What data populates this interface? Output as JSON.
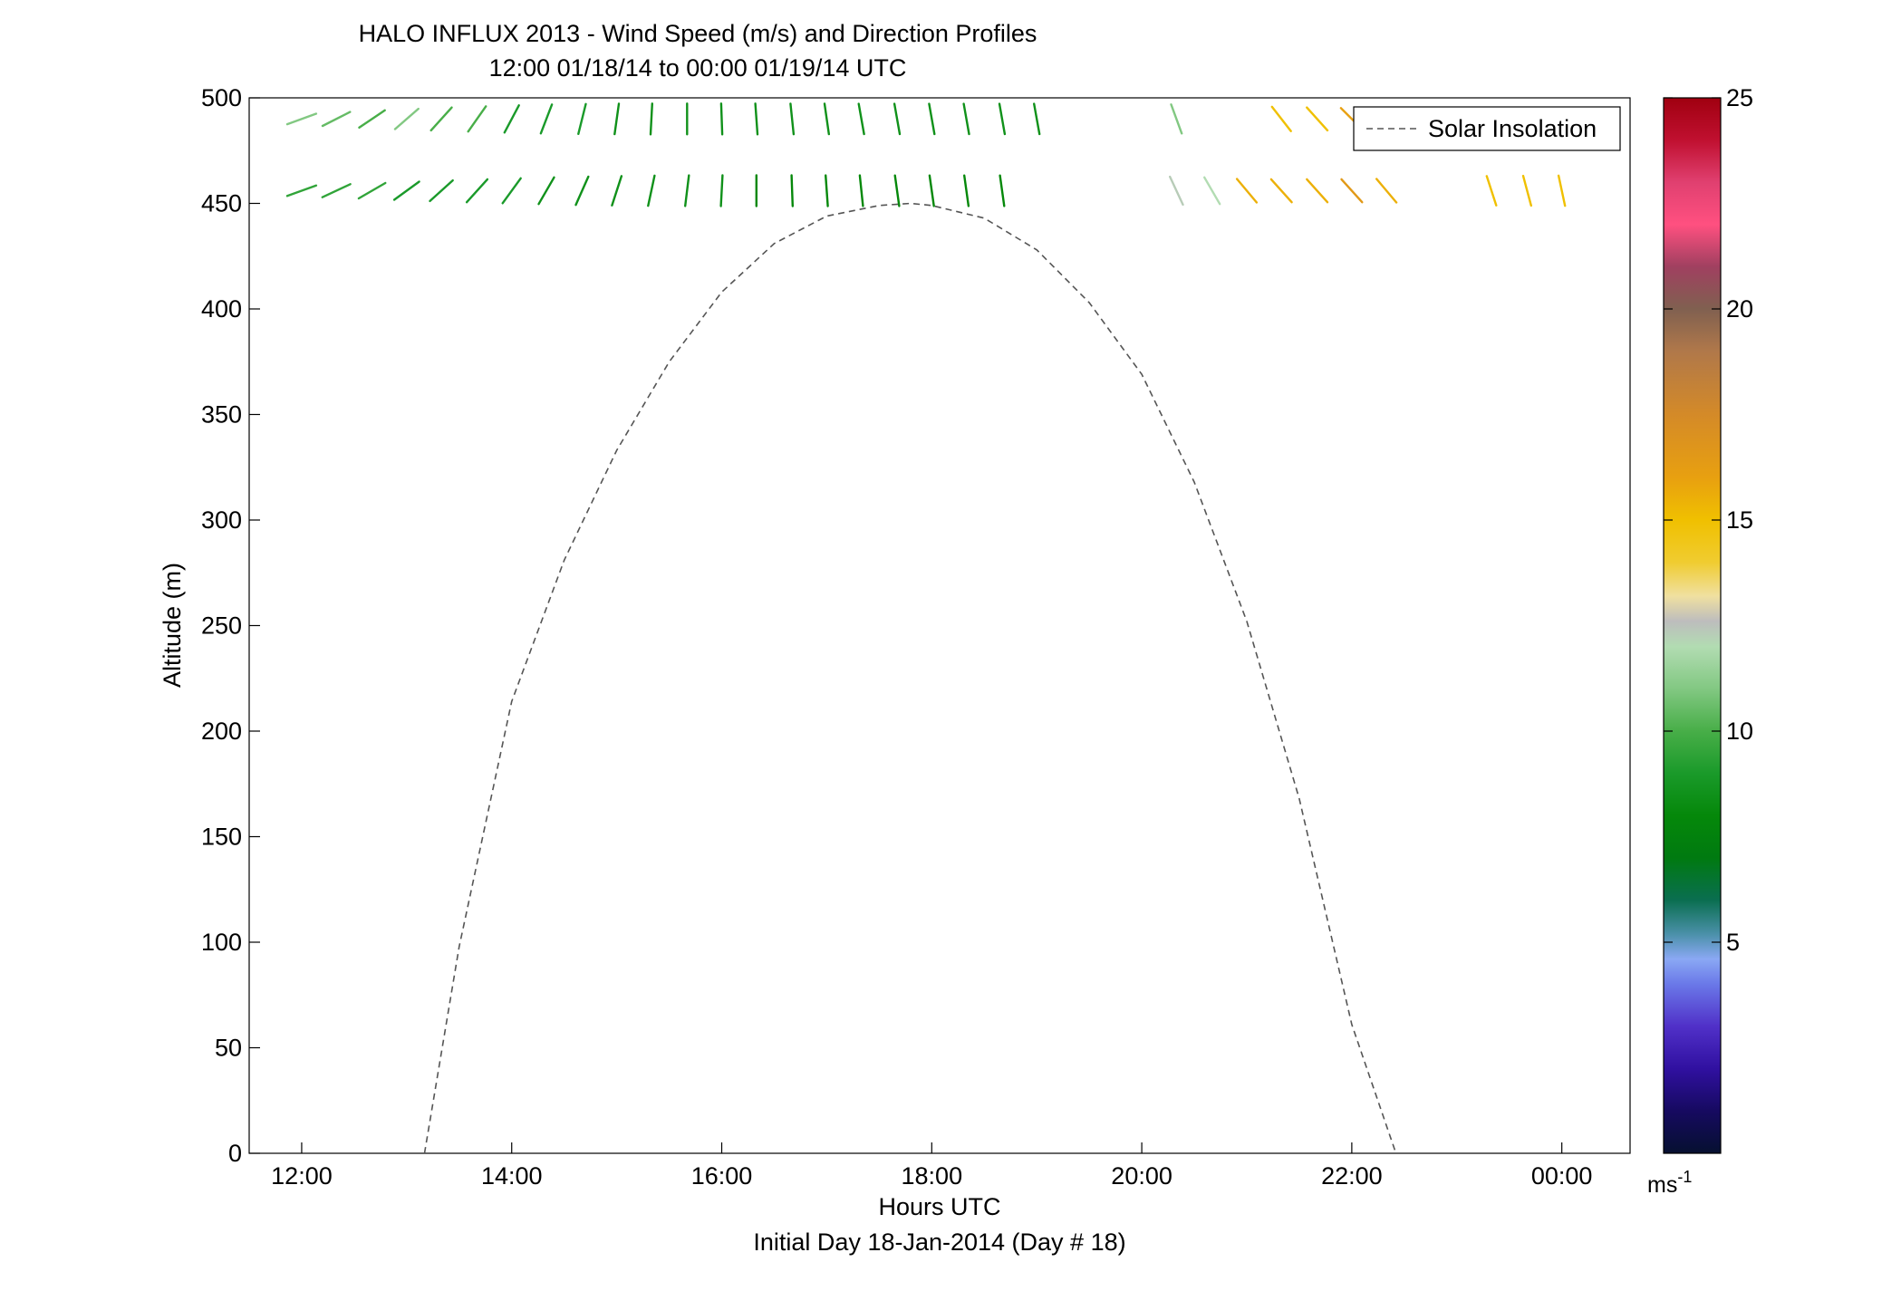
{
  "chart_data": {
    "type": "wind-barb-profile",
    "title": "HALO INFLUX 2013 - Wind Speed (m/s) and Direction Profiles",
    "subtitle": "12:00 01/18/14 to 00:00 01/19/14  UTC",
    "xlabel": "Hours UTC",
    "xlabel2": "Initial Day 18-Jan-2014 (Day # 18)",
    "ylabel": "Altitude (m)",
    "xlim": [
      11.5,
      24.65
    ],
    "ylim": [
      0,
      500
    ],
    "xticks": [
      12,
      14,
      16,
      18,
      20,
      22,
      24
    ],
    "xtick_labels": [
      "12:00",
      "14:00",
      "16:00",
      "18:00",
      "20:00",
      "22:00",
      "00:00"
    ],
    "yticks": [
      0,
      50,
      100,
      150,
      200,
      250,
      300,
      350,
      400,
      450,
      500
    ],
    "ytick_labels": [
      "0",
      "50",
      "100",
      "150",
      "200",
      "250",
      "300",
      "350",
      "400",
      "450",
      "500"
    ],
    "legend": {
      "label": "Solar Insolation",
      "placement": "top-right",
      "line_color": "#555555"
    },
    "solar_insolation": {
      "x": [
        13.17,
        13.5,
        14.0,
        14.5,
        15.0,
        15.5,
        16.0,
        16.5,
        17.0,
        17.5,
        17.8,
        18.0,
        18.5,
        19.0,
        19.5,
        20.0,
        20.5,
        21.0,
        21.5,
        22.0,
        22.42
      ],
      "y": [
        0,
        98,
        214,
        281,
        333,
        375,
        408,
        431,
        444,
        449,
        450,
        449,
        443,
        428,
        403,
        369,
        318,
        252,
        168,
        61,
        0
      ]
    },
    "colorbar": {
      "unit_label": "ms",
      "unit_exponent": "-1",
      "range": [
        0,
        25
      ],
      "tick_values": [
        5,
        10,
        15,
        20,
        25
      ],
      "tick_labels": [
        "5",
        "10",
        "15",
        "20",
        "25"
      ],
      "stops": [
        [
          0,
          "#061030"
        ],
        [
          1,
          "#160a60"
        ],
        [
          2,
          "#3010a0"
        ],
        [
          3,
          "#5030c8"
        ],
        [
          4,
          "#6a78e8"
        ],
        [
          4.6,
          "#8aa8f4"
        ],
        [
          5.2,
          "#4a90a8"
        ],
        [
          6,
          "#0a6e50"
        ],
        [
          7,
          "#007a10"
        ],
        [
          8,
          "#05880a"
        ],
        [
          9,
          "#1a9a2a"
        ],
        [
          10,
          "#48ae48"
        ],
        [
          11,
          "#82c882"
        ],
        [
          12,
          "#b2dcb2"
        ],
        [
          12.6,
          "#bdbdbd"
        ],
        [
          13.2,
          "#f0e0a0"
        ],
        [
          14,
          "#f0cc30"
        ],
        [
          15,
          "#f0c000"
        ],
        [
          16,
          "#e8a010"
        ],
        [
          17.5,
          "#d48a28"
        ],
        [
          19,
          "#b0784a"
        ],
        [
          20,
          "#806050"
        ],
        [
          21,
          "#a04060"
        ],
        [
          22,
          "#ff5080"
        ],
        [
          23,
          "#e04070"
        ],
        [
          24,
          "#c01030"
        ],
        [
          25,
          "#a00010"
        ]
      ]
    },
    "x_hours": [
      12.0,
      12.33,
      12.67,
      13.0,
      13.33,
      13.67,
      14.0,
      14.33,
      14.67,
      15.0,
      15.33,
      15.67,
      16.0,
      16.33,
      16.67,
      17.0,
      17.33,
      17.67,
      18.0,
      18.33,
      18.67,
      19.0,
      19.33,
      19.67,
      20.0,
      20.33,
      20.67,
      21.0,
      21.33,
      21.67,
      22.0,
      22.33,
      22.67,
      23.0,
      23.33,
      23.67,
      24.0
    ],
    "rows": [
      {
        "altitude": 490,
        "range": [
          0,
          21
        ],
        "extra": [
          [
            21,
            22
          ],
          [
            25,
            26
          ],
          [
            28,
            32
          ]
        ],
        "spd": [
          11,
          10.5,
          10,
          11,
          10,
          10,
          9,
          9,
          9,
          8.5,
          8.5,
          8.5,
          8.5,
          8.5,
          8.5,
          8.5,
          8.5,
          8.5,
          8.5,
          8.5,
          8.5,
          8.5,
          8.5,
          8.5,
          8.5,
          11,
          11.5,
          12,
          15,
          15,
          16,
          15.5,
          15.5
        ],
        "dir": [
          250,
          243,
          236,
          229,
          222,
          215,
          208,
          201,
          194,
          188,
          183,
          180,
          178,
          176,
          174,
          172,
          170,
          170,
          170,
          170,
          170,
          170,
          170,
          170,
          170,
          160,
          155,
          148,
          142,
          138,
          135,
          135,
          135
        ]
      },
      {
        "altitude": 456,
        "range": [
          0,
          21
        ],
        "extra": [
          [
            25,
            27
          ],
          [
            27,
            32
          ],
          [
            34,
            37
          ]
        ],
        "spd": [
          9.5,
          9.5,
          9.5,
          9,
          9,
          9,
          9,
          8.5,
          8.5,
          8.5,
          8.5,
          8.5,
          8.5,
          8,
          8,
          8,
          8,
          8,
          8,
          8,
          8,
          8,
          8,
          8,
          8,
          12.3,
          12,
          15.5,
          15.5,
          15.5,
          16.5,
          15.5,
          15,
          15,
          15,
          15,
          15
        ],
        "dir": [
          250,
          245,
          240,
          234,
          228,
          222,
          216,
          210,
          204,
          198,
          192,
          187,
          183,
          180,
          178,
          176,
          174,
          172,
          172,
          172,
          172,
          172,
          172,
          172,
          172,
          155,
          150,
          140,
          138,
          138,
          138,
          140,
          155,
          160,
          162,
          165,
          168
        ]
      }
    ],
    "grid": false
  }
}
